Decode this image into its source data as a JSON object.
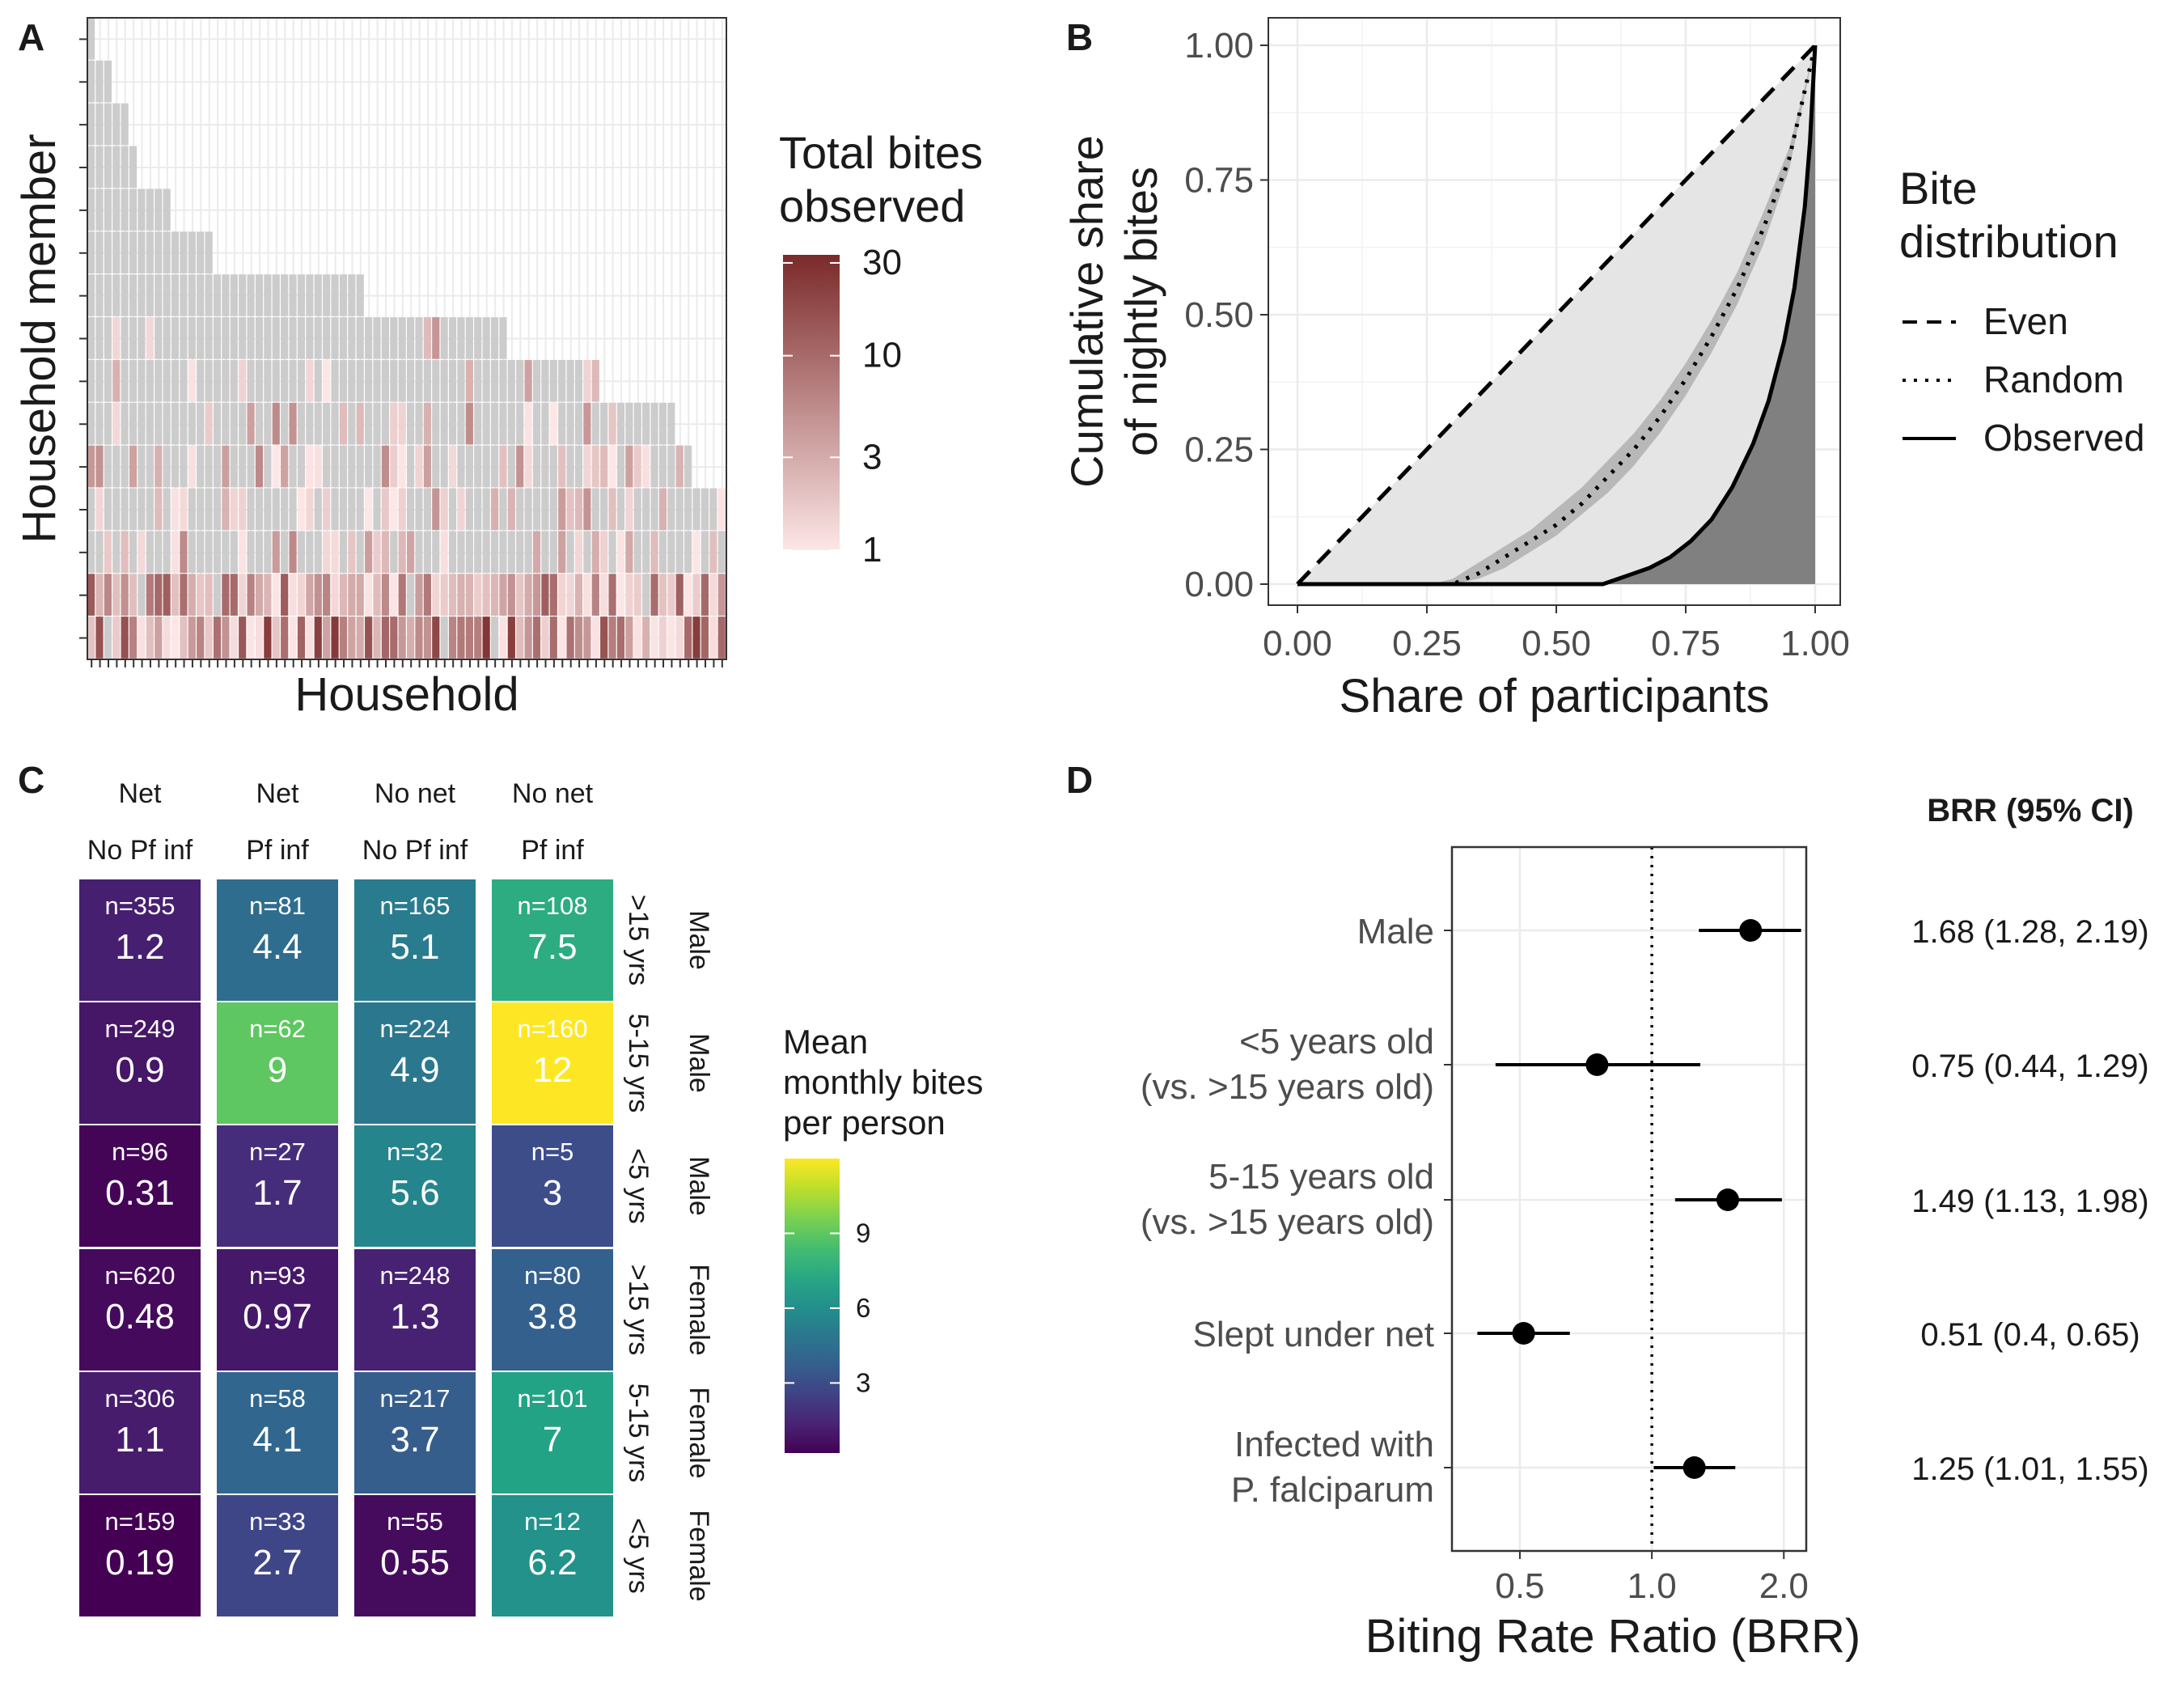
{
  "chart_data": [
    {
      "panel": "A",
      "type": "heatmap",
      "xlabel": "Household",
      "ylabel": "Household member",
      "legend": {
        "title_lines": [
          "Total bites",
          "observed"
        ],
        "scale": "log",
        "breaks": [
          1,
          3,
          10,
          30
        ],
        "break_labels": [
          "1",
          "3",
          "10",
          "30"
        ],
        "low_color": "#fde6e6",
        "high_color": "#7b2a2a",
        "missing_color": "#cccccc"
      },
      "households": 76,
      "members_per_household": [
        15,
        14,
        14,
        13,
        13,
        12,
        11,
        11,
        11,
        11,
        10,
        10,
        10,
        10,
        10,
        9,
        9,
        9,
        9,
        9,
        9,
        9,
        9,
        9,
        9,
        9,
        9,
        9,
        9,
        9,
        9,
        9,
        9,
        8,
        8,
        8,
        8,
        8,
        8,
        8,
        8,
        8,
        8,
        8,
        8,
        8,
        8,
        8,
        8,
        8,
        7,
        7,
        7,
        7,
        7,
        7,
        7,
        7,
        7,
        7,
        7,
        6,
        6,
        6,
        6,
        6,
        6,
        6,
        6,
        6,
        5,
        5,
        4,
        4,
        4,
        4
      ],
      "max_members": 15
    },
    {
      "panel": "B",
      "type": "line",
      "xlabel": "Share of participants",
      "ylabel_lines": [
        "Cumulative share",
        "of nightly bites"
      ],
      "xlim": [
        0,
        1
      ],
      "ylim": [
        0,
        1
      ],
      "x_ticks": [
        0,
        0.25,
        0.5,
        0.75,
        1
      ],
      "x_tick_labels": [
        "0.00",
        "0.25",
        "0.50",
        "0.75",
        "1.00"
      ],
      "y_ticks": [
        0,
        0.25,
        0.5,
        0.75,
        1
      ],
      "y_tick_labels": [
        "0.00",
        "0.25",
        "0.50",
        "0.75",
        "1.00"
      ],
      "grid": true,
      "legend": {
        "title_lines": [
          "Bite",
          "distribution"
        ],
        "position": "right",
        "entries": [
          {
            "label": "Even",
            "dash": "dashed"
          },
          {
            "label": "Random",
            "dash": "dotted"
          },
          {
            "label": "Observed",
            "dash": "solid"
          }
        ]
      },
      "series": [
        {
          "name": "Even",
          "x": [
            0,
            1
          ],
          "y": [
            0,
            1
          ]
        },
        {
          "name": "Random",
          "x": [
            0,
            0.3,
            0.35,
            0.4,
            0.45,
            0.5,
            0.55,
            0.6,
            0.65,
            0.7,
            0.75,
            0.8,
            0.85,
            0.9,
            0.95,
            1.0
          ],
          "y": [
            0,
            0,
            0.02,
            0.05,
            0.08,
            0.11,
            0.15,
            0.2,
            0.25,
            0.31,
            0.38,
            0.46,
            0.55,
            0.66,
            0.79,
            1.0
          ]
        },
        {
          "name": "Observed",
          "x": [
            0,
            0.59,
            0.62,
            0.65,
            0.68,
            0.72,
            0.76,
            0.8,
            0.84,
            0.88,
            0.91,
            0.94,
            0.96,
            0.98,
            0.99,
            1.0
          ],
          "y": [
            0,
            0,
            0.01,
            0.02,
            0.03,
            0.05,
            0.08,
            0.12,
            0.18,
            0.26,
            0.34,
            0.45,
            0.55,
            0.7,
            0.82,
            1.0
          ]
        }
      ],
      "random_band": {
        "x": [
          0.26,
          0.3,
          0.35,
          0.4,
          0.45,
          0.5,
          0.55,
          0.6,
          0.65,
          0.7,
          0.75,
          0.8,
          0.85,
          0.9,
          0.95,
          1.0
        ],
        "lower": [
          0,
          0,
          0.01,
          0.03,
          0.06,
          0.09,
          0.13,
          0.17,
          0.22,
          0.28,
          0.35,
          0.43,
          0.52,
          0.63,
          0.77,
          1.0
        ],
        "upper": [
          0,
          0.01,
          0.04,
          0.07,
          0.1,
          0.14,
          0.18,
          0.23,
          0.28,
          0.34,
          0.41,
          0.49,
          0.58,
          0.69,
          0.81,
          1.0
        ]
      }
    },
    {
      "panel": "C",
      "type": "heatmap",
      "columns": [
        {
          "strip1": "Net",
          "strip2": "No Pf inf"
        },
        {
          "strip1": "Net",
          "strip2": "Pf inf"
        },
        {
          "strip1": "No net",
          "strip2": "No Pf inf"
        },
        {
          "strip1": "No net",
          "strip2": "Pf inf"
        }
      ],
      "rows": [
        {
          "age": ">15 yrs",
          "sex": "Male",
          "cells": [
            {
              "n": "n=355",
              "mean": 1.2,
              "label": "1.2"
            },
            {
              "n": "n=81",
              "mean": 4.4,
              "label": "4.4"
            },
            {
              "n": "n=165",
              "mean": 5.1,
              "label": "5.1"
            },
            {
              "n": "n=108",
              "mean": 7.5,
              "label": "7.5"
            }
          ]
        },
        {
          "age": "5-15 yrs",
          "sex": "Male",
          "cells": [
            {
              "n": "n=249",
              "mean": 0.9,
              "label": "0.9"
            },
            {
              "n": "n=62",
              "mean": 9,
              "label": "9"
            },
            {
              "n": "n=224",
              "mean": 4.9,
              "label": "4.9"
            },
            {
              "n": "n=160",
              "mean": 12,
              "label": "12"
            }
          ]
        },
        {
          "age": "<5 yrs",
          "sex": "Male",
          "cells": [
            {
              "n": "n=96",
              "mean": 0.31,
              "label": "0.31"
            },
            {
              "n": "n=27",
              "mean": 1.7,
              "label": "1.7"
            },
            {
              "n": "n=32",
              "mean": 5.6,
              "label": "5.6"
            },
            {
              "n": "n=5",
              "mean": 3,
              "label": "3"
            }
          ]
        },
        {
          "age": ">15 yrs",
          "sex": "Female",
          "cells": [
            {
              "n": "n=620",
              "mean": 0.48,
              "label": "0.48"
            },
            {
              "n": "n=93",
              "mean": 0.97,
              "label": "0.97"
            },
            {
              "n": "n=248",
              "mean": 1.3,
              "label": "1.3"
            },
            {
              "n": "n=80",
              "mean": 3.8,
              "label": "3.8"
            }
          ]
        },
        {
          "age": "5-15 yrs",
          "sex": "Female",
          "cells": [
            {
              "n": "n=306",
              "mean": 1.1,
              "label": "1.1"
            },
            {
              "n": "n=58",
              "mean": 4.1,
              "label": "4.1"
            },
            {
              "n": "n=217",
              "mean": 3.7,
              "label": "3.7"
            },
            {
              "n": "n=101",
              "mean": 7,
              "label": "7"
            }
          ]
        },
        {
          "age": "<5 yrs",
          "sex": "Female",
          "cells": [
            {
              "n": "n=159",
              "mean": 0.19,
              "label": "0.19"
            },
            {
              "n": "n=33",
              "mean": 2.7,
              "label": "2.7"
            },
            {
              "n": "n=55",
              "mean": 0.55,
              "label": "0.55"
            },
            {
              "n": "n=12",
              "mean": 6.2,
              "label": "6.2"
            }
          ]
        }
      ],
      "legend": {
        "title_lines": [
          "Mean",
          "monthly bites",
          "per person"
        ],
        "colormap": "viridis",
        "limits": [
          0.19,
          12
        ],
        "breaks": [
          3,
          6,
          9
        ],
        "break_labels": [
          "3",
          "6",
          "9"
        ]
      }
    },
    {
      "panel": "D",
      "type": "scatter",
      "xlabel": "Biting Rate Ratio (BRR)",
      "x_scale": "log",
      "xlim": [
        0.35,
        2.25
      ],
      "x_ticks": [
        0.5,
        1.0,
        2.0
      ],
      "x_tick_labels": [
        "0.5",
        "1.0",
        "2.0"
      ],
      "reference_line": 1.0,
      "table_header": "BRR (95% CI)",
      "points": [
        {
          "label_lines": [
            "Male"
          ],
          "brr": 1.68,
          "lo": 1.28,
          "hi": 2.19,
          "text": "1.68 (1.28, 2.19)"
        },
        {
          "label_lines": [
            "<5 years old",
            "(vs. >15 years old)"
          ],
          "brr": 0.75,
          "lo": 0.44,
          "hi": 1.29,
          "text": "0.75 (0.44, 1.29)"
        },
        {
          "label_lines": [
            "5-15 years old",
            "(vs. >15 years old)"
          ],
          "brr": 1.49,
          "lo": 1.13,
          "hi": 1.98,
          "text": "1.49 (1.13, 1.98)"
        },
        {
          "label_lines": [
            "Slept under net"
          ],
          "brr": 0.51,
          "lo": 0.4,
          "hi": 0.65,
          "text": "0.51 (0.4, 0.65)"
        },
        {
          "label_lines": [
            "Infected with",
            "P. falciparum"
          ],
          "brr": 1.25,
          "lo": 1.01,
          "hi": 1.55,
          "text": "1.25 (1.01, 1.55)"
        }
      ]
    }
  ],
  "panel_labels": [
    "A",
    "B",
    "C",
    "D"
  ]
}
